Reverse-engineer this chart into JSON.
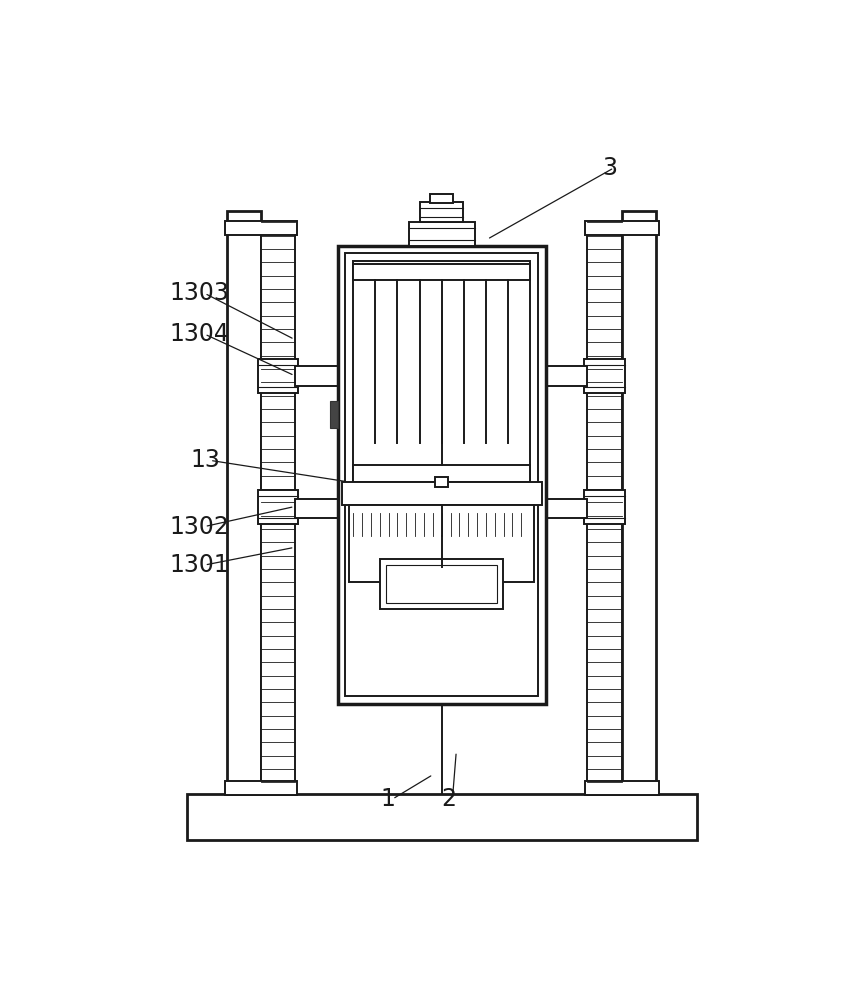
{
  "bg_color": "#ffffff",
  "line_color": "#1a1a1a",
  "lw_main": 2.0,
  "lw_med": 1.4,
  "lw_thin": 0.8,
  "fig_w": 8.61,
  "fig_h": 10.0
}
